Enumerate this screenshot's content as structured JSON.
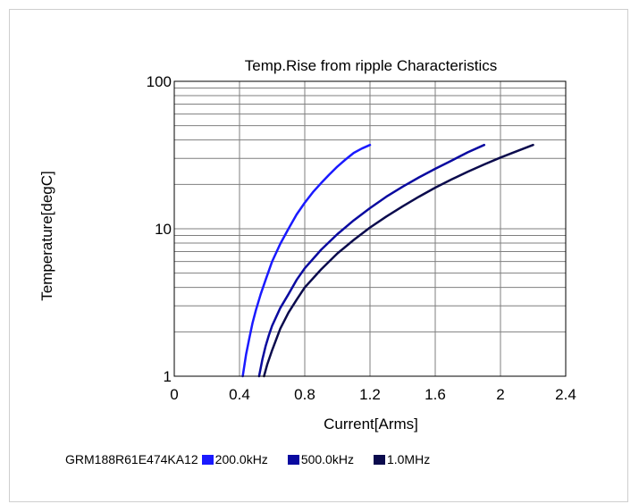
{
  "chart_data": {
    "type": "line",
    "title": "Temp.Rise from ripple Characteristics",
    "xlabel": "Current[Arms]",
    "ylabel": "Temperature[degC]",
    "xlim": [
      0,
      2.4
    ],
    "ylim": [
      1,
      100
    ],
    "yscale": "log",
    "xticks": [
      "0",
      "0.4",
      "0.8",
      "1.2",
      "1.6",
      "2",
      "2.4"
    ],
    "yticks": [
      "1",
      "10",
      "100"
    ],
    "grid": true,
    "legend_position": "bottom",
    "part_number": "GRM188R61E474KA12",
    "series": [
      {
        "name": "200.0kHz",
        "color": "#1a1aff",
        "x": [
          0.42,
          0.44,
          0.46,
          0.48,
          0.5,
          0.53,
          0.56,
          0.6,
          0.65,
          0.7,
          0.75,
          0.8,
          0.85,
          0.9,
          0.95,
          1.0,
          1.05,
          1.1,
          1.15,
          1.2
        ],
        "y": [
          1.0,
          1.4,
          1.8,
          2.3,
          2.8,
          3.6,
          4.5,
          6.0,
          7.9,
          10.0,
          12.5,
          15.0,
          17.7,
          20.4,
          23.3,
          26.4,
          29.5,
          32.7,
          35.0,
          37.0
        ]
      },
      {
        "name": "500.0kHz",
        "color": "#0a0aa0",
        "x": [
          0.52,
          0.54,
          0.56,
          0.58,
          0.6,
          0.65,
          0.7,
          0.75,
          0.8,
          0.9,
          1.0,
          1.1,
          1.2,
          1.3,
          1.4,
          1.5,
          1.6,
          1.7,
          1.8,
          1.9
        ],
        "y": [
          1.0,
          1.3,
          1.6,
          1.9,
          2.2,
          2.9,
          3.6,
          4.5,
          5.4,
          7.2,
          9.2,
          11.4,
          13.8,
          16.5,
          19.3,
          22.3,
          25.5,
          29.0,
          33.0,
          37.0
        ]
      },
      {
        "name": "1.0MHz",
        "color": "#0b0b4d",
        "x": [
          0.55,
          0.57,
          0.6,
          0.65,
          0.7,
          0.75,
          0.8,
          0.9,
          1.0,
          1.1,
          1.2,
          1.3,
          1.4,
          1.5,
          1.6,
          1.7,
          1.8,
          1.9,
          2.0,
          2.1,
          2.2
        ],
        "y": [
          1.0,
          1.2,
          1.5,
          2.1,
          2.7,
          3.3,
          4.0,
          5.3,
          6.8,
          8.4,
          10.2,
          12.1,
          14.2,
          16.5,
          19.0,
          21.6,
          24.4,
          27.3,
          30.4,
          33.6,
          37.0
        ]
      }
    ]
  }
}
